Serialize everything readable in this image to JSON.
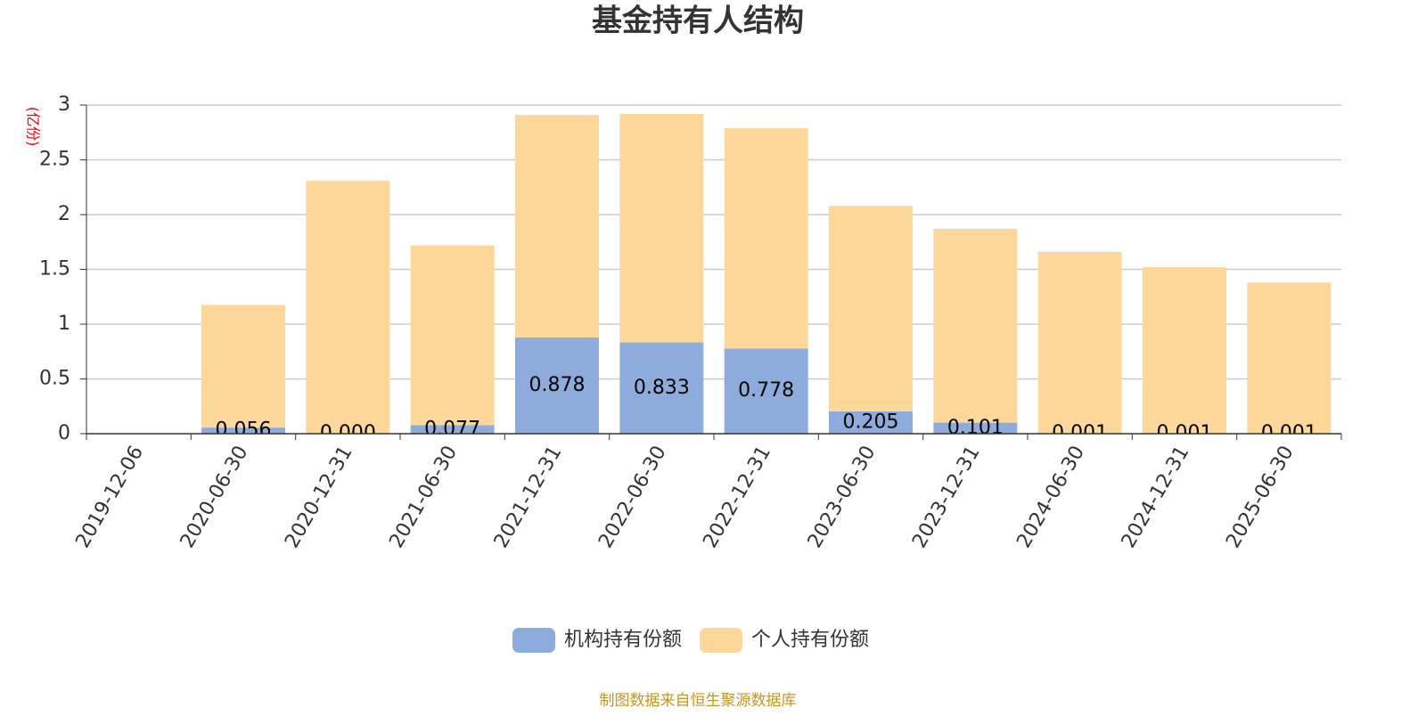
{
  "chart_data": {
    "type": "bar",
    "stacked": true,
    "title": "基金持有人结构",
    "y_unit": "(亿份)",
    "source": "制图数据来自恒生聚源数据库",
    "categories": [
      "2019-12-06",
      "2020-06-30",
      "2020-12-31",
      "2021-06-30",
      "2021-12-31",
      "2022-06-30",
      "2022-12-31",
      "2023-06-30",
      "2023-12-31",
      "2024-06-30",
      "2024-12-31",
      "2025-06-30"
    ],
    "series": [
      {
        "name": "机构持有份额",
        "color": "#8eacdb",
        "values": [
          null,
          0.056,
          0,
          0.077,
          0.878,
          0.833,
          0.778,
          0.205,
          0.101,
          0.001,
          0.001,
          0.001
        ],
        "value_labels": [
          null,
          "0.056",
          "0.000",
          "0.077",
          "0.878",
          "0.833",
          "0.778",
          "0.205",
          "0.101",
          "0.001",
          "0.001",
          "0.001"
        ]
      },
      {
        "name": "个人持有份额",
        "color": "#fdd89a",
        "values": [
          null,
          1.12,
          2.31,
          1.643,
          2.032,
          2.087,
          2.012,
          1.875,
          1.769,
          1.659,
          1.519,
          1.379
        ]
      }
    ],
    "ylim": [
      0,
      3
    ],
    "yticks": [
      0,
      0.5,
      1,
      1.5,
      2,
      2.5,
      3
    ],
    "grid": true
  }
}
